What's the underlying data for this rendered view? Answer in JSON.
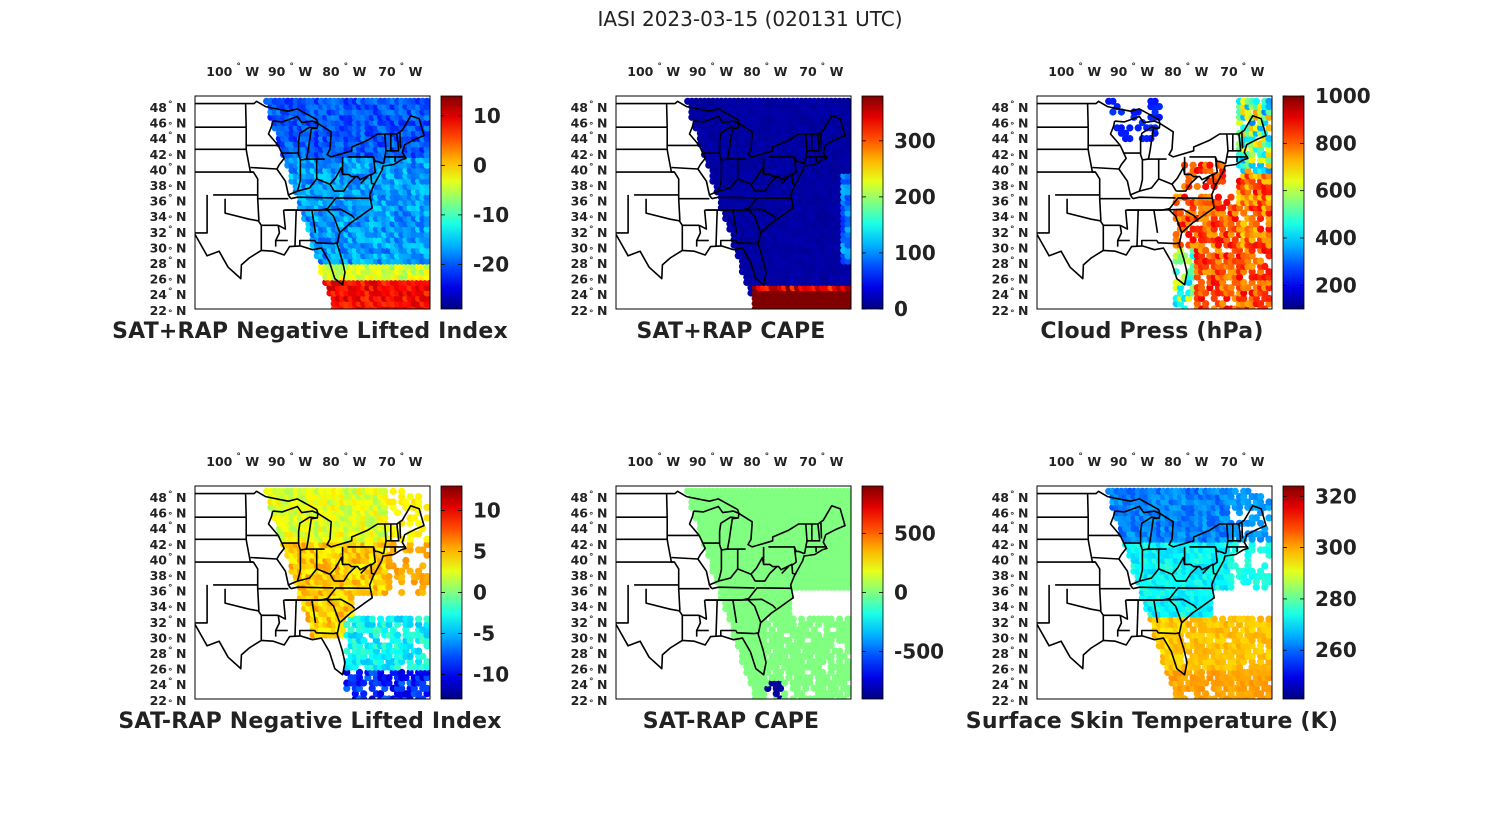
{
  "figure": {
    "title": "IASI 2023-03-15 (020131 UTC)"
  },
  "map_axes": {
    "lon_ticks": [
      {
        "deg": "100",
        "hemi": "W"
      },
      {
        "deg": "90",
        "hemi": "W"
      },
      {
        "deg": "80",
        "hemi": "W"
      },
      {
        "deg": "70",
        "hemi": "W"
      }
    ],
    "lat_ticks": [
      {
        "deg": "48",
        "hemi": "N"
      },
      {
        "deg": "46",
        "hemi": "N"
      },
      {
        "deg": "44",
        "hemi": "N"
      },
      {
        "deg": "42",
        "hemi": "N"
      },
      {
        "deg": "40",
        "hemi": "N"
      },
      {
        "deg": "38",
        "hemi": "N"
      },
      {
        "deg": "36",
        "hemi": "N"
      },
      {
        "deg": "34",
        "hemi": "N"
      },
      {
        "deg": "32",
        "hemi": "N"
      },
      {
        "deg": "30",
        "hemi": "N"
      },
      {
        "deg": "28",
        "hemi": "N"
      },
      {
        "deg": "26",
        "hemi": "N"
      },
      {
        "deg": "24",
        "hemi": "N"
      },
      {
        "deg": "22",
        "hemi": "N"
      }
    ],
    "degree_symbol": "°"
  },
  "colormap": "jet",
  "panels": [
    {
      "id": "p1",
      "title": "SAT+RAP Negative Lifted Index",
      "colorbar": {
        "min": -29,
        "max": 14,
        "ticks": [
          "10",
          "0",
          "-10",
          "-20"
        ],
        "tick_values": [
          10,
          0,
          -10,
          -20
        ]
      },
      "field": {
        "coverage": "full",
        "description_values": [
          -18,
          -22,
          8
        ]
      }
    },
    {
      "id": "p2",
      "title": "SAT+RAP CAPE",
      "colorbar": {
        "min": 0,
        "max": 380,
        "ticks": [
          "300",
          "200",
          "100",
          "0"
        ],
        "tick_values": [
          300,
          200,
          100,
          0
        ]
      },
      "field": {
        "coverage": "full",
        "description_values": [
          0,
          0,
          380
        ]
      }
    },
    {
      "id": "p3",
      "title": "Cloud Press (hPa)",
      "colorbar": {
        "min": 100,
        "max": 1000,
        "ticks": [
          "1000",
          "800",
          "600",
          "400",
          "200"
        ],
        "tick_values": [
          1000,
          800,
          600,
          400,
          200
        ]
      },
      "field": {
        "coverage": "partial",
        "description_values": [
          300,
          200,
          850
        ]
      }
    },
    {
      "id": "p4",
      "title": "SAT-RAP Negative Lifted Index",
      "colorbar": {
        "min": -13,
        "max": 13,
        "ticks": [
          "10",
          "5",
          "0",
          "-5",
          "-10"
        ],
        "tick_values": [
          10,
          5,
          0,
          -5,
          -10
        ]
      },
      "field": {
        "coverage": "partial",
        "description_values": [
          3,
          -2,
          -5
        ]
      }
    },
    {
      "id": "p5",
      "title": "SAT-RAP CAPE",
      "colorbar": {
        "min": -900,
        "max": 900,
        "ticks": [
          "500",
          "0",
          "-500"
        ],
        "tick_values": [
          500,
          0,
          -500
        ]
      },
      "field": {
        "coverage": "partial",
        "description_values": [
          0,
          0,
          0
        ]
      }
    },
    {
      "id": "p6",
      "title": "Surface Skin Temperature (K)",
      "colorbar": {
        "min": 241,
        "max": 324,
        "ticks": [
          "320",
          "300",
          "280",
          "260"
        ],
        "tick_values": [
          320,
          300,
          280,
          260
        ]
      },
      "field": {
        "coverage": "partial",
        "description_values": [
          262,
          275,
          296
        ]
      }
    }
  ]
}
